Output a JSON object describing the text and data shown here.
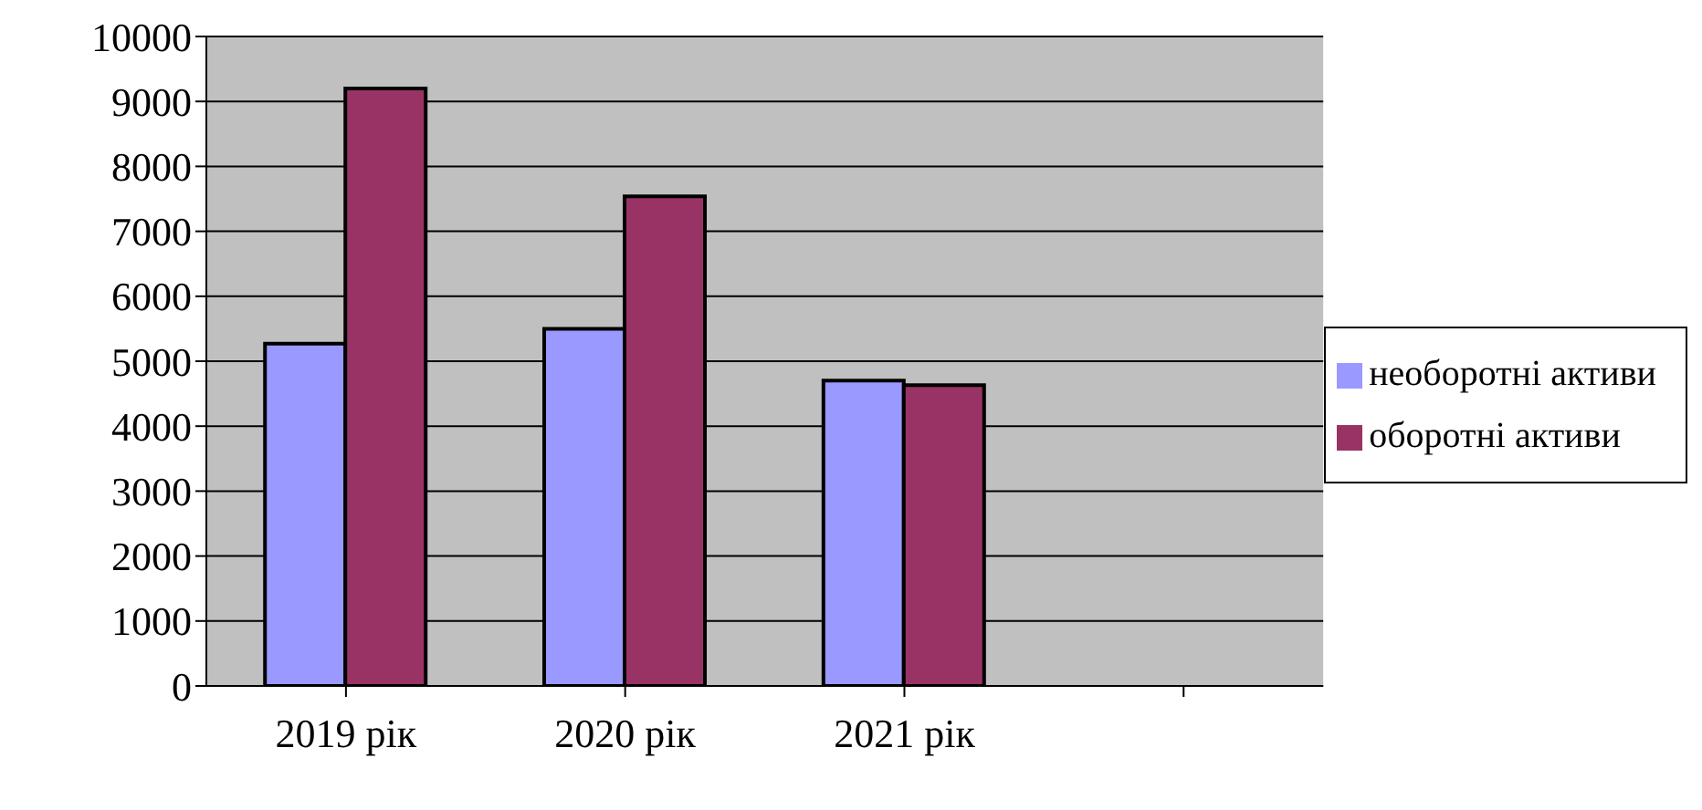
{
  "chart_data": {
    "type": "bar",
    "categories": [
      "2019 рік",
      "2020 рік",
      "2021 рік",
      null
    ],
    "series": [
      {
        "name": "необоротні активи",
        "color": "#9999ff",
        "values": [
          5270,
          5500,
          4700,
          null
        ]
      },
      {
        "name": "оборотні активи",
        "color": "#993366",
        "values": [
          9200,
          7540,
          4630,
          null
        ]
      }
    ],
    "ylim": [
      0,
      10000
    ],
    "yticks": [
      0,
      1000,
      2000,
      3000,
      4000,
      5000,
      6000,
      7000,
      8000,
      9000,
      10000
    ],
    "grid": "y",
    "legend": "right"
  }
}
